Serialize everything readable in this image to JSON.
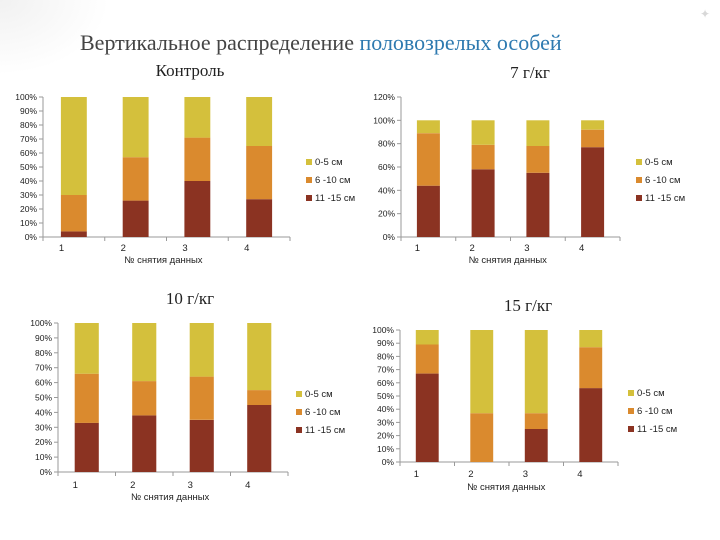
{
  "title": {
    "part1": "Вертикальное распределение",
    "part2": "половозрелых особей"
  },
  "colors": {
    "accent": "#2e7ab0",
    "series": {
      "0-5 см": "#d4c03c",
      "6 -10 см": "#da8a2e",
      "11 -15 см": "#8b3322"
    }
  },
  "chart_data": [
    {
      "type": "bar",
      "stacked": true,
      "title": "Контроль",
      "categories": [
        "1",
        "2",
        "3",
        "4"
      ],
      "xlabel": "№ снятия данных",
      "ylabel": "",
      "ylim": [
        0,
        100
      ],
      "yticks": [
        "0%",
        "10%",
        "20%",
        "30%",
        "40%",
        "50%",
        "60%",
        "70%",
        "80%",
        "90%",
        "100%"
      ],
      "legend_position": "right",
      "series": [
        {
          "name": "11 -15 см",
          "values": [
            4,
            26,
            40,
            27
          ]
        },
        {
          "name": "6 -10 см",
          "values": [
            26,
            31,
            31,
            38
          ]
        },
        {
          "name": "0-5 см",
          "values": [
            70,
            43,
            29,
            35
          ]
        }
      ]
    },
    {
      "type": "bar",
      "stacked": true,
      "title": "7 г/кг",
      "categories": [
        "1",
        "2",
        "3",
        "4"
      ],
      "xlabel": "№ снятия данных",
      "ylabel": "",
      "ylim": [
        0,
        120
      ],
      "yticks": [
        "0%",
        "20%",
        "40%",
        "60%",
        "80%",
        "100%",
        "120%"
      ],
      "legend_position": "right",
      "series": [
        {
          "name": "11 -15 см",
          "values": [
            44,
            58,
            55,
            77
          ]
        },
        {
          "name": "6 -10 см",
          "values": [
            45,
            21,
            23,
            15
          ]
        },
        {
          "name": "0-5 см",
          "values": [
            11,
            21,
            22,
            8
          ]
        }
      ]
    },
    {
      "type": "bar",
      "stacked": true,
      "title": "10 г/кг",
      "categories": [
        "1",
        "2",
        "3",
        "4"
      ],
      "xlabel": "№ снятия данных",
      "ylabel": "",
      "ylim": [
        0,
        100
      ],
      "yticks": [
        "0%",
        "10%",
        "20%",
        "30%",
        "40%",
        "50%",
        "60%",
        "70%",
        "80%",
        "90%",
        "100%"
      ],
      "legend_position": "right",
      "series": [
        {
          "name": "11 -15 см",
          "values": [
            33,
            38,
            35,
            45
          ]
        },
        {
          "name": "6 -10 см",
          "values": [
            33,
            23,
            29,
            10
          ]
        },
        {
          "name": "0-5 см",
          "values": [
            34,
            39,
            36,
            45
          ]
        }
      ]
    },
    {
      "type": "bar",
      "stacked": true,
      "title": "15 г/кг",
      "categories": [
        "1",
        "2",
        "3",
        "4"
      ],
      "xlabel": "№ снятия данных",
      "ylabel": "",
      "ylim": [
        0,
        100
      ],
      "yticks": [
        "0%",
        "10%",
        "20%",
        "30%",
        "40%",
        "50%",
        "60%",
        "70%",
        "80%",
        "90%",
        "100%"
      ],
      "legend_position": "right",
      "series": [
        {
          "name": "11 -15 см",
          "values": [
            67,
            0,
            25,
            56
          ]
        },
        {
          "name": "6 -10 см",
          "values": [
            22,
            37,
            12,
            31
          ]
        },
        {
          "name": "0-5 см",
          "values": [
            11,
            63,
            63,
            13
          ]
        }
      ]
    }
  ]
}
